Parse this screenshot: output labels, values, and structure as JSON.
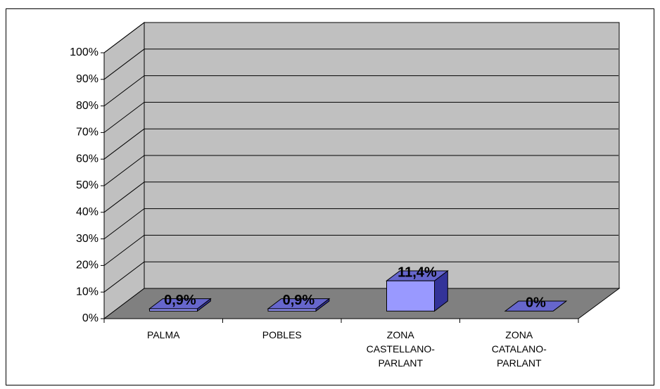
{
  "chart_data": {
    "type": "bar3d",
    "categories": [
      "PALMA",
      "POBLES",
      "ZONA CASTELLANO-PARLANT",
      "ZONA CATALANO-PARLANT"
    ],
    "values": [
      0.9,
      0.9,
      11.4,
      0
    ],
    "value_labels": [
      "0,9%",
      "0,9%",
      "11,4%",
      "0%"
    ],
    "color": "#9999ff",
    "ylim": [
      0,
      100
    ],
    "yticks": [
      {
        "value": 0,
        "label": "0%"
      },
      {
        "value": 10,
        "label": "10%"
      },
      {
        "value": 20,
        "label": "20%"
      },
      {
        "value": 30,
        "label": "30%"
      },
      {
        "value": 40,
        "label": "40%"
      },
      {
        "value": 50,
        "label": "50%"
      },
      {
        "value": 60,
        "label": "60%"
      },
      {
        "value": 70,
        "label": "70%"
      },
      {
        "value": 80,
        "label": "80%"
      },
      {
        "value": 90,
        "label": "90%"
      },
      {
        "value": 100,
        "label": "100%"
      }
    ],
    "grid": true
  }
}
